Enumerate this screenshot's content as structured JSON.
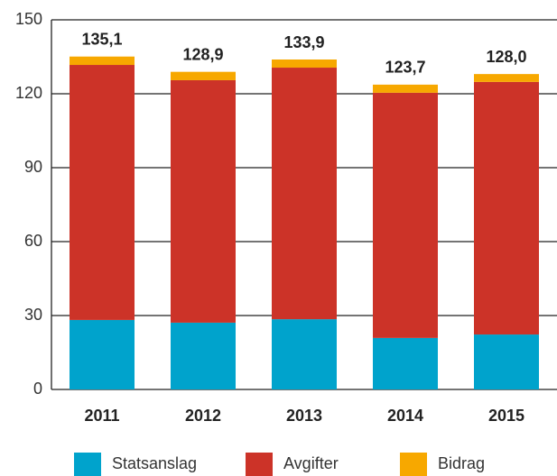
{
  "chart_data": {
    "type": "stacked_bar",
    "categories": [
      "2011",
      "2012",
      "2013",
      "2014",
      "2015"
    ],
    "series": [
      {
        "name": "Statsanslag",
        "color": "#00a3cc",
        "values": [
          28.2,
          27.1,
          28.5,
          20.9,
          22.3
        ]
      },
      {
        "name": "Avgifter",
        "color": "#cc3328",
        "values": [
          103.5,
          98.4,
          102.1,
          99.5,
          102.5
        ]
      },
      {
        "name": "Bidrag",
        "color": "#f7a800",
        "values": [
          3.4,
          3.4,
          3.3,
          3.3,
          3.2
        ]
      }
    ],
    "totals": [
      135.1,
      128.9,
      133.9,
      123.7,
      128.0
    ],
    "value_labels": [
      "135,1",
      "128,9",
      "133,9",
      "123,7",
      "128,0"
    ],
    "ylim": [
      0,
      150
    ],
    "yticks": [
      0,
      30,
      60,
      90,
      120,
      150
    ],
    "grid": true,
    "legend": "bottom"
  }
}
